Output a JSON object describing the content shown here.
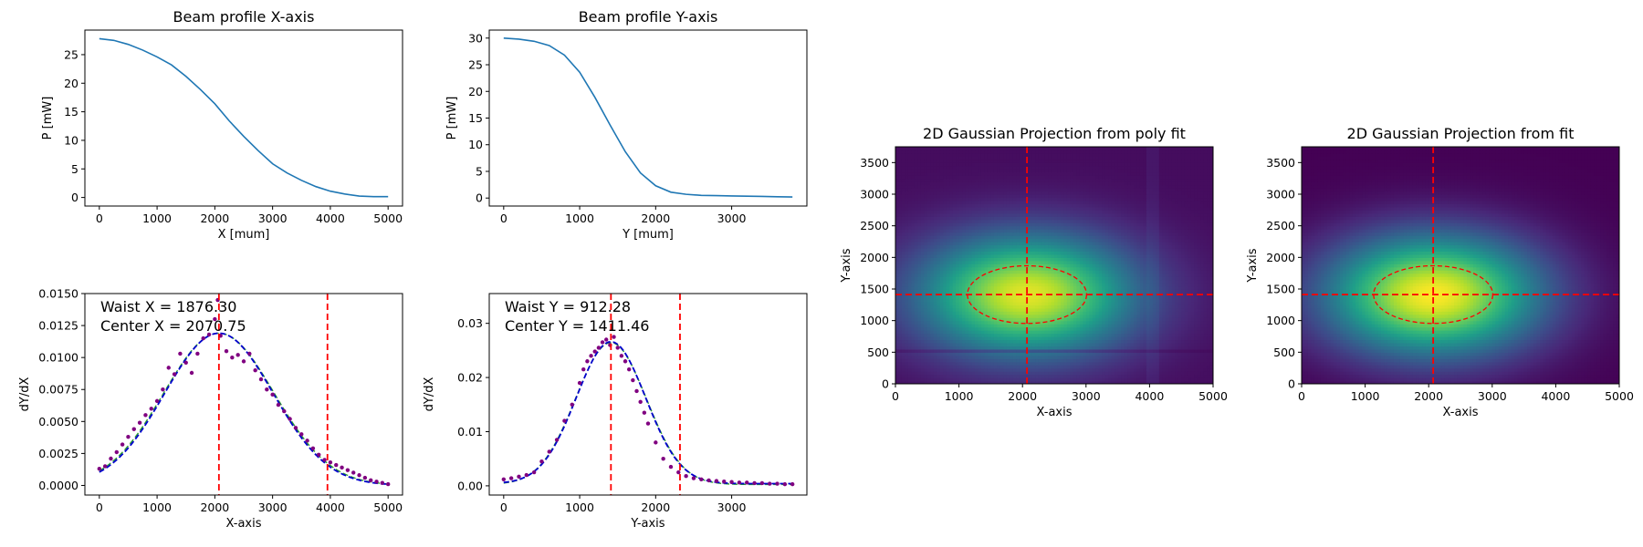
{
  "chart_data": [
    {
      "id": "profile-x",
      "type": "line",
      "title": "Beam profile X-axis",
      "xlabel": "X [mum]",
      "ylabel": "P [mW]",
      "xlim": [
        -250,
        5250
      ],
      "ylim": [
        -1.5,
        29.3
      ],
      "xticks": [
        0,
        1000,
        2000,
        3000,
        4000,
        5000
      ],
      "yticks": [
        0,
        5,
        10,
        15,
        20,
        25
      ],
      "colors": {
        "line": "#1f77b4"
      },
      "series": [
        {
          "x": [
            0,
            250,
            500,
            750,
            1000,
            1250,
            1500,
            1750,
            2000,
            2250,
            2500,
            2750,
            3000,
            3250,
            3500,
            3750,
            4000,
            4250,
            4500,
            4750,
            5000
          ],
          "y": [
            27.8,
            27.5,
            26.8,
            25.8,
            24.6,
            23.2,
            21.2,
            18.9,
            16.4,
            13.4,
            10.7,
            8.2,
            5.9,
            4.3,
            3.0,
            1.9,
            1.1,
            0.6,
            0.25,
            0.15,
            0.15
          ]
        }
      ]
    },
    {
      "id": "profile-y",
      "type": "line",
      "title": "Beam profile Y-axis",
      "xlabel": "Y [mum]",
      "ylabel": "P [mW]",
      "xlim": [
        -190,
        3990
      ],
      "ylim": [
        -1.5,
        31.5
      ],
      "xticks": [
        0,
        1000,
        2000,
        3000
      ],
      "yticks": [
        0,
        5,
        10,
        15,
        20,
        25,
        30
      ],
      "colors": {
        "line": "#1f77b4"
      },
      "series": [
        {
          "x": [
            0,
            200,
            400,
            600,
            800,
            1000,
            1200,
            1400,
            1600,
            1800,
            2000,
            2200,
            2400,
            2600,
            2800,
            3000,
            3200,
            3400,
            3600,
            3800
          ],
          "y": [
            30.0,
            29.8,
            29.4,
            28.6,
            26.8,
            23.6,
            18.9,
            13.7,
            8.7,
            4.7,
            2.3,
            1.1,
            0.7,
            0.5,
            0.45,
            0.4,
            0.35,
            0.3,
            0.25,
            0.2
          ]
        }
      ]
    },
    {
      "id": "deriv-x",
      "type": "scatter",
      "title": "",
      "xlabel": "X-axis",
      "ylabel": "dY/dX",
      "xlim": [
        -250,
        5250
      ],
      "ylim": [
        -0.00075,
        0.015
      ],
      "xticks": [
        0,
        1000,
        2000,
        3000,
        4000,
        5000
      ],
      "yticks": [
        0.0,
        0.0025,
        0.005,
        0.0075,
        0.01,
        0.0125,
        0.015
      ],
      "ytick_labels": [
        "0.0000",
        "0.0025",
        "0.0050",
        "0.0075",
        "0.0100",
        "0.0125",
        "0.0150"
      ],
      "annotations": [
        "Waist X = 1876.30",
        "Center X = 2070.75"
      ],
      "vlines": [
        2070.75,
        3950
      ],
      "colors": {
        "points": "#800080",
        "fit": "#0000cd",
        "fit_tail": "#2ca02c",
        "vline": "#ff0000"
      },
      "points": {
        "x": [
          0,
          100,
          200,
          300,
          400,
          500,
          600,
          700,
          800,
          900,
          1000,
          1100,
          1200,
          1300,
          1400,
          1500,
          1600,
          1700,
          1800,
          1900,
          2000,
          2050,
          2100,
          2200,
          2300,
          2400,
          2500,
          2600,
          2700,
          2800,
          2900,
          3000,
          3100,
          3200,
          3300,
          3400,
          3500,
          3600,
          3700,
          3800,
          3900,
          4000,
          4100,
          4200,
          4300,
          4400,
          4500,
          4600,
          4700,
          4800,
          4900,
          5000
        ],
        "y": [
          0.0013,
          0.0015,
          0.0021,
          0.0026,
          0.0032,
          0.0038,
          0.0044,
          0.0049,
          0.0055,
          0.006,
          0.0066,
          0.0075,
          0.0092,
          0.0087,
          0.0103,
          0.0096,
          0.0088,
          0.0103,
          0.0115,
          0.0118,
          0.013,
          0.0145,
          0.0117,
          0.0105,
          0.01,
          0.0102,
          0.0097,
          0.0103,
          0.009,
          0.0083,
          0.0075,
          0.0071,
          0.0063,
          0.0058,
          0.0052,
          0.0045,
          0.004,
          0.0035,
          0.0029,
          0.0024,
          0.002,
          0.0018,
          0.0016,
          0.0014,
          0.0012,
          0.001,
          0.0008,
          0.0006,
          0.0004,
          0.0003,
          0.0002,
          0.0001
        ]
      },
      "fit": {
        "center": 2070.75,
        "amplitude": 0.0119,
        "sigma": 938.15,
        "offset": 0.0
      }
    },
    {
      "id": "deriv-y",
      "type": "scatter",
      "title": "",
      "xlabel": "Y-axis",
      "ylabel": "dY/dX",
      "xlim": [
        -190,
        3990
      ],
      "ylim": [
        -0.0017,
        0.0355
      ],
      "xticks": [
        0,
        1000,
        2000,
        3000
      ],
      "yticks": [
        0.0,
        0.01,
        0.02,
        0.03
      ],
      "ytick_labels": [
        "0.00",
        "0.01",
        "0.02",
        "0.03"
      ],
      "annotations": [
        "Waist Y = 912.28",
        "Center Y = 1411.46"
      ],
      "vlines": [
        1411.46,
        2320
      ],
      "colors": {
        "points": "#800080",
        "fit": "#0000cd",
        "fit_tail": "#2ca02c",
        "vline": "#ff0000"
      },
      "points": {
        "x": [
          0,
          100,
          200,
          300,
          400,
          500,
          600,
          700,
          800,
          900,
          1000,
          1050,
          1100,
          1150,
          1200,
          1250,
          1300,
          1350,
          1400,
          1450,
          1500,
          1550,
          1600,
          1650,
          1700,
          1750,
          1800,
          1850,
          1900,
          2000,
          2100,
          2200,
          2300,
          2400,
          2500,
          2600,
          2700,
          2800,
          2900,
          3000,
          3100,
          3200,
          3300,
          3400,
          3500,
          3600,
          3700,
          3800
        ],
        "y": [
          0.0012,
          0.0014,
          0.0017,
          0.002,
          0.0025,
          0.0045,
          0.0063,
          0.0085,
          0.012,
          0.015,
          0.019,
          0.0215,
          0.023,
          0.024,
          0.0248,
          0.0255,
          0.0265,
          0.027,
          0.026,
          0.0275,
          0.0255,
          0.024,
          0.023,
          0.0215,
          0.0195,
          0.0175,
          0.0155,
          0.0135,
          0.0115,
          0.008,
          0.005,
          0.0035,
          0.0025,
          0.0018,
          0.0014,
          0.0012,
          0.001,
          0.0009,
          0.0008,
          0.0007,
          0.0006,
          0.0006,
          0.0005,
          0.0005,
          0.0004,
          0.0004,
          0.0003,
          0.0003
        ]
      },
      "fit": {
        "center": 1411.46,
        "amplitude": 0.0262,
        "sigma": 456.14,
        "offset": 0.0004
      }
    },
    {
      "id": "proj-poly",
      "type": "heatmap",
      "title": "2D Gaussian Projection from poly fit",
      "xlabel": "X-axis",
      "ylabel": "Y-axis",
      "xlim": [
        0,
        5000
      ],
      "ylim": [
        0,
        3750
      ],
      "xticks": [
        0,
        1000,
        2000,
        3000,
        4000,
        5000
      ],
      "yticks": [
        0,
        500,
        1000,
        1500,
        2000,
        2500,
        3000,
        3500
      ],
      "center": [
        2070.75,
        1411.46
      ],
      "ellipse_radii": [
        938.15,
        456.14
      ],
      "colormap": "viridis",
      "colors": {
        "crosshair": "#ff0000"
      }
    },
    {
      "id": "proj-fit",
      "type": "heatmap",
      "title": "2D Gaussian Projection from fit",
      "xlabel": "X-axis",
      "ylabel": "Y-axis",
      "xlim": [
        0,
        5000
      ],
      "ylim": [
        0,
        3750
      ],
      "xticks": [
        0,
        1000,
        2000,
        3000,
        4000,
        5000
      ],
      "yticks": [
        0,
        500,
        1000,
        1500,
        2000,
        2500,
        3000,
        3500
      ],
      "center": [
        2070.75,
        1411.46
      ],
      "ellipse_radii": [
        938.15,
        456.14
      ],
      "colormap": "viridis",
      "colors": {
        "crosshair": "#ff0000"
      }
    }
  ]
}
